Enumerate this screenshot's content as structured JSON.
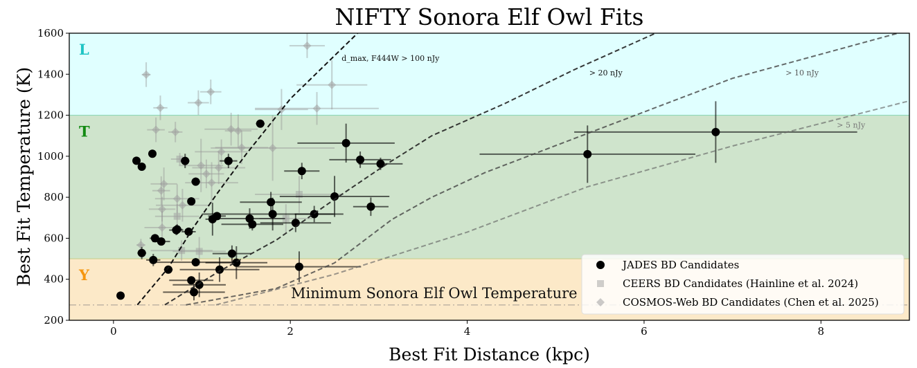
{
  "chart_data": {
    "type": "scatter",
    "title": "NIFTY Sonora Elf Owl Fits",
    "xlabel": "Best Fit Distance (kpc)",
    "ylabel": "Best Fit Temperature (K)",
    "xlim": [
      -0.5,
      9
    ],
    "ylim": [
      200,
      1600
    ],
    "xticks": [
      0,
      2,
      4,
      6,
      8
    ],
    "yticks": [
      200,
      400,
      600,
      800,
      1000,
      1200,
      1400,
      1600
    ],
    "grid": false,
    "legend_position": "bottom-right",
    "regions": [
      {
        "label": "L",
        "range": [
          1200,
          1600
        ],
        "fill": "#e0ffff",
        "label_color": "#20c4c4"
      },
      {
        "label": "T",
        "range": [
          500,
          1200
        ],
        "fill": "#cfe4cc",
        "label_color": "#138a13"
      },
      {
        "label": "Y",
        "range": [
          200,
          500
        ],
        "fill": "#fce9c8",
        "label_color": "#f5960f"
      }
    ],
    "min_temperature": {
      "label": "Minimum Sonora Elf Owl Temperature",
      "value": 275,
      "color": "#c4b8a6"
    },
    "dmax_curves": [
      {
        "label": "d_max, F444W > 100 nJy",
        "color": "#111111",
        "opacity": 1.0,
        "x": [
          0.27,
          0.62,
          0.9,
          1.17,
          1.5,
          2.0,
          2.76
        ],
        "y": [
          275,
          456,
          650,
          817,
          1010,
          1280,
          1600
        ]
      },
      {
        "label": "> 20 nJy",
        "color": "#222222",
        "opacity": 0.9,
        "x": [
          0.58,
          1.2,
          1.84,
          2.5,
          3.09,
          3.6,
          4.42,
          5.2,
          6.13
        ],
        "y": [
          275,
          440,
          591,
          790,
          962,
          1100,
          1256,
          1420,
          1600
        ]
      },
      {
        "label": "> 10 nJy",
        "color": "#444444",
        "opacity": 0.8,
        "x": [
          0.82,
          1.84,
          2.5,
          3.15,
          3.6,
          4.2,
          5.36,
          7.0,
          8.87
        ],
        "y": [
          275,
          355,
          480,
          692,
          800,
          920,
          1111,
          1380,
          1600
        ]
      },
      {
        "label": "> 5 nJy",
        "color": "#666666",
        "opacity": 0.65,
        "x": [
          1.16,
          2.49,
          4.0,
          5.36,
          7.0,
          9.0
        ],
        "y": [
          275,
          423,
          630,
          851,
          1050,
          1270
        ]
      }
    ],
    "series": [
      {
        "name": "JADES BD Candidates",
        "marker": "circle",
        "color": "#000000",
        "x": [
          0.08,
          0.26,
          0.32,
          0.44,
          0.81,
          1.66,
          0.93,
          0.88,
          1.12,
          1.17,
          1.3,
          0.71,
          0.72,
          0.85,
          0.47,
          0.54,
          0.32,
          0.45,
          0.62,
          0.93,
          0.88,
          0.97,
          0.91,
          1.2,
          1.34,
          1.39,
          1.54,
          1.57,
          1.78,
          1.8,
          2.06,
          2.27,
          2.13,
          2.63,
          2.79,
          3.02,
          2.5,
          2.91,
          2.1,
          5.36,
          6.81
        ],
        "y": [
          320,
          978,
          949,
          1012,
          977,
          1159,
          876,
          780,
          693,
          708,
          977,
          640,
          643,
          632,
          600,
          584,
          528,
          494,
          447,
          483,
          395,
          373,
          337,
          447,
          525,
          481,
          696,
          668,
          776,
          718,
          675,
          718,
          928,
          1064,
          983,
          963,
          804,
          754,
          461,
          1010,
          1118
        ],
        "xerr": [
          0.02,
          0.03,
          0.03,
          0.03,
          0.05,
          0.05,
          0.05,
          0.04,
          0.08,
          0.1,
          0.1,
          0.08,
          0.06,
          0.08,
          0.06,
          0.1,
          0.05,
          0.08,
          0.05,
          0.5,
          0.25,
          0.3,
          0.35,
          0.45,
          0.22,
          0.35,
          0.4,
          0.35,
          0.35,
          0.8,
          0.4,
          0.22,
          0.2,
          0.55,
          0.35,
          0.25,
          0.62,
          0.2,
          0.7,
          1.22,
          1.6
        ],
        "yerr": [
          10,
          15,
          15,
          15,
          35,
          15,
          20,
          20,
          80,
          20,
          35,
          25,
          25,
          15,
          15,
          15,
          30,
          30,
          15,
          20,
          15,
          60,
          40,
          60,
          40,
          80,
          50,
          30,
          50,
          80,
          45,
          40,
          40,
          95,
          40,
          30,
          100,
          45,
          75,
          140,
          150
        ]
      },
      {
        "name": "CEERS BD Candidates (Hainline et al. 2024)",
        "marker": "square",
        "color": "#a0a0a0",
        "x": [
          0.75,
          0.72,
          0.77,
          0.97,
          1.95,
          2.1
        ],
        "y": [
          986,
          707,
          540,
          536,
          696,
          814
        ],
        "xerr": [
          0.1,
          0.25,
          0.35,
          0.3,
          0.3,
          0.5
        ],
        "yerr": [
          30,
          60,
          50,
          70,
          70,
          90
        ]
      },
      {
        "name": "COSMOS-Web BD Candidates (Chen et al. 2025)",
        "marker": "diamond",
        "color": "#a0a0a0",
        "x": [
          0.37,
          0.53,
          0.96,
          1.1,
          2.19,
          2.47,
          2.3,
          1.9,
          0.48,
          0.7,
          1.33,
          1.41,
          1.45,
          1.8,
          1.22,
          0.99,
          1.19,
          1.05,
          1.11,
          0.57,
          0.54,
          0.72,
          0.78,
          0.55,
          0.55,
          0.31
        ],
        "y": [
          1398,
          1236,
          1261,
          1314,
          1539,
          1348,
          1233,
          1228,
          1129,
          1118,
          1132,
          1124,
          1042,
          1040,
          1022,
          955,
          944,
          914,
          871,
          865,
          832,
          793,
          761,
          742,
          652,
          567
        ],
        "xerr": [
          0.05,
          0.08,
          0.12,
          0.12,
          0.2,
          0.4,
          0.7,
          0.3,
          0.1,
          0.08,
          0.3,
          0.15,
          0.3,
          0.7,
          0.3,
          0.25,
          0.3,
          0.2,
          0.3,
          0.15,
          0.1,
          0.25,
          0.3,
          0.15,
          0.2,
          0.05
        ],
        "yerr": [
          60,
          60,
          60,
          60,
          60,
          120,
          80,
          100,
          60,
          50,
          80,
          80,
          80,
          160,
          60,
          130,
          80,
          70,
          100,
          80,
          70,
          70,
          80,
          60,
          80,
          30
        ]
      }
    ],
    "annotations": [
      {
        "text": "d_max, F444W > 100 nJy",
        "x": 2.58,
        "y": 1465
      },
      {
        "text": "> 20 nJy",
        "x": 5.38,
        "y": 1395
      },
      {
        "text": "> 10 nJy",
        "x": 7.6,
        "y": 1395
      },
      {
        "text": "> 5 nJy",
        "x": 8.18,
        "y": 1140
      }
    ]
  }
}
